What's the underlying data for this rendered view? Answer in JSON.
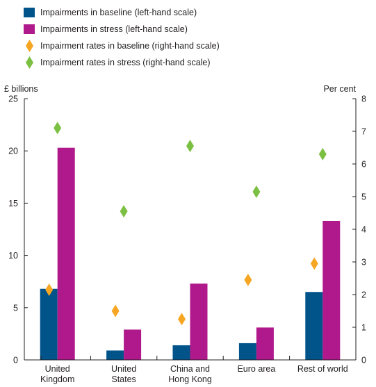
{
  "legend": [
    {
      "label": "Impairments in baseline (left-hand scale)",
      "kind": "bar",
      "color": "#00548a"
    },
    {
      "label": "Impairments in stress (left-hand scale)",
      "kind": "bar",
      "color": "#b0198b"
    },
    {
      "label": "Impairment rates in baseline (right-hand scale)",
      "kind": "diamond",
      "color": "#f6a623"
    },
    {
      "label": "Impairment rates in stress (right-hand scale)",
      "kind": "diamond",
      "color": "#7cc043"
    }
  ],
  "chart_data": {
    "type": "bar",
    "left_axis_label": "£ billions",
    "right_axis_label": "Per cent",
    "categories": [
      [
        "United",
        "Kingdom"
      ],
      [
        "United",
        "States"
      ],
      [
        "China and",
        "Hong Kong"
      ],
      [
        "Euro area"
      ],
      [
        "Rest of world"
      ]
    ],
    "left_ylim": [
      0,
      25
    ],
    "left_ticks": [
      0,
      5,
      10,
      15,
      20,
      25
    ],
    "right_ylim": [
      0,
      8
    ],
    "right_ticks": [
      0,
      1,
      2,
      3,
      4,
      5,
      6,
      7,
      8
    ],
    "series": [
      {
        "name": "Impairments in baseline (left-hand scale)",
        "type": "bar",
        "axis": "left",
        "color": "#00548a",
        "values": [
          6.8,
          0.9,
          1.4,
          1.6,
          6.5
        ]
      },
      {
        "name": "Impairments in stress (left-hand scale)",
        "type": "bar",
        "axis": "left",
        "color": "#b0198b",
        "values": [
          20.3,
          2.9,
          7.3,
          3.1,
          13.3
        ]
      },
      {
        "name": "Impairment rates in baseline (right-hand scale)",
        "type": "diamond",
        "axis": "right",
        "color": "#f6a623",
        "values": [
          2.15,
          1.5,
          1.25,
          2.45,
          2.95
        ]
      },
      {
        "name": "Impairment rates in stress (right-hand scale)",
        "type": "diamond",
        "axis": "right",
        "color": "#7cc043",
        "values": [
          7.1,
          4.55,
          6.55,
          5.15,
          6.3
        ]
      }
    ]
  }
}
